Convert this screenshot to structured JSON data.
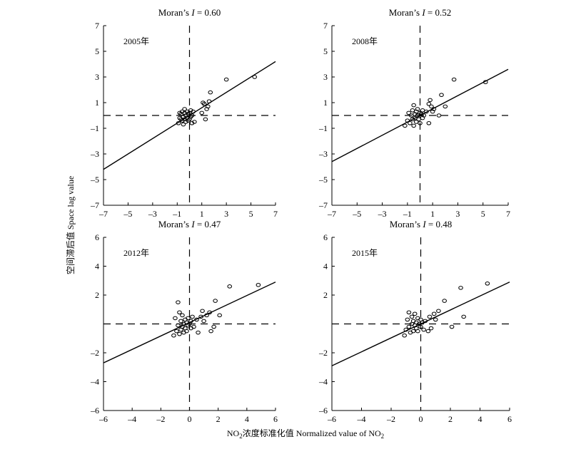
{
  "figure": {
    "ylabel": "空间滞后值  Space lag value",
    "xlabel_prefix": "NO",
    "xlabel_sub": "2",
    "xlabel_mid": "浓度标准化值 Normalized value of NO",
    "xlabel_sub2": "2"
  },
  "chart_data": [
    {
      "type": "scatter",
      "title_prefix": "Moran’s ",
      "title_var": "I",
      "title_value": " = 0.60",
      "year": "2005年",
      "xlim": [
        -7,
        7
      ],
      "ylim": [
        -7,
        7
      ],
      "xticks": [
        -7,
        -5,
        -3,
        -1,
        1,
        3,
        5,
        7
      ],
      "yticks": [
        -7,
        -5,
        -3,
        -1,
        1,
        3,
        5,
        7
      ],
      "ytick_labels": [
        "–7",
        "–5",
        "–3",
        "–1",
        "1",
        "3",
        "5",
        "7"
      ],
      "xtick_labels": [
        "–7",
        "–5",
        "–3",
        "–1",
        "1",
        "3",
        "5",
        "7"
      ],
      "vline_x": 0,
      "hline_y": 0,
      "fit_line": [
        [
          -7,
          -4.2
        ],
        [
          7,
          4.2
        ]
      ],
      "points": [
        [
          -0.9,
          -0.6
        ],
        [
          -0.8,
          -0.2
        ],
        [
          -0.7,
          0.1
        ],
        [
          -0.6,
          -0.4
        ],
        [
          -0.6,
          0.3
        ],
        [
          -0.5,
          -0.1
        ],
        [
          -0.5,
          -0.7
        ],
        [
          -0.4,
          0.2
        ],
        [
          -0.4,
          -0.3
        ],
        [
          -0.3,
          0.0
        ],
        [
          -0.3,
          -0.5
        ],
        [
          -0.2,
          0.3
        ],
        [
          -0.2,
          -0.2
        ],
        [
          -0.1,
          0.1
        ],
        [
          -0.1,
          -0.4
        ],
        [
          0.0,
          0.2
        ],
        [
          0.0,
          -0.3
        ],
        [
          0.1,
          0.4
        ],
        [
          0.1,
          -0.1
        ],
        [
          0.2,
          0.0
        ],
        [
          0.2,
          -0.6
        ],
        [
          0.3,
          0.3
        ],
        [
          -0.7,
          -0.3
        ],
        [
          -0.8,
          0.2
        ],
        [
          -0.4,
          0.5
        ],
        [
          0.4,
          -0.5
        ],
        [
          1.0,
          0.2
        ],
        [
          1.1,
          1.0
        ],
        [
          1.2,
          0.9
        ],
        [
          1.3,
          -0.3
        ],
        [
          1.4,
          0.5
        ],
        [
          1.5,
          0.7
        ],
        [
          1.6,
          1.1
        ],
        [
          1.7,
          1.8
        ],
        [
          3.0,
          2.8
        ],
        [
          5.3,
          3.0
        ]
      ]
    },
    {
      "type": "scatter",
      "title_prefix": "Moran’s ",
      "title_var": "I",
      "title_value": " = 0.52",
      "year": "2008年",
      "xlim": [
        -7,
        7
      ],
      "ylim": [
        -7,
        7
      ],
      "xticks": [
        -7,
        -5,
        -3,
        -1,
        1,
        3,
        5,
        7
      ],
      "yticks": [
        -7,
        -5,
        -3,
        -1,
        1,
        3,
        5,
        7
      ],
      "ytick_labels": [
        "–7",
        "–5",
        "–3",
        "–1",
        "1",
        "3",
        "5",
        "7"
      ],
      "xtick_labels": [
        "–7",
        "–5",
        "–3",
        "–1",
        "1",
        "3",
        "5",
        "7"
      ],
      "vline_x": 0,
      "hline_y": 0,
      "fit_line": [
        [
          -7,
          -3.6
        ],
        [
          7,
          3.6
        ]
      ],
      "points": [
        [
          -1.2,
          -0.8
        ],
        [
          -1.0,
          -0.4
        ],
        [
          -0.9,
          0.2
        ],
        [
          -0.8,
          -0.6
        ],
        [
          -0.7,
          0.0
        ],
        [
          -0.6,
          -0.3
        ],
        [
          -0.6,
          0.4
        ],
        [
          -0.5,
          -0.8
        ],
        [
          -0.5,
          0.8
        ],
        [
          -0.4,
          0.1
        ],
        [
          -0.4,
          -0.2
        ],
        [
          -0.3,
          0.3
        ],
        [
          -0.3,
          -0.5
        ],
        [
          -0.2,
          0.0
        ],
        [
          -0.2,
          0.5
        ],
        [
          -0.1,
          -0.3
        ],
        [
          0.0,
          0.2
        ],
        [
          0.0,
          -0.6
        ],
        [
          0.1,
          0.1
        ],
        [
          0.2,
          0.4
        ],
        [
          0.2,
          -0.2
        ],
        [
          0.3,
          0.0
        ],
        [
          0.5,
          0.3
        ],
        [
          0.7,
          0.9
        ],
        [
          0.7,
          -0.6
        ],
        [
          0.8,
          1.2
        ],
        [
          0.9,
          0.7
        ],
        [
          1.0,
          0.3
        ],
        [
          1.1,
          0.5
        ],
        [
          1.5,
          0.0
        ],
        [
          1.7,
          1.6
        ],
        [
          2.0,
          0.7
        ],
        [
          2.7,
          2.8
        ],
        [
          5.2,
          2.6
        ]
      ]
    },
    {
      "type": "scatter",
      "title_prefix": "Moran’s ",
      "title_var": "I",
      "title_value": " = 0.47",
      "year": "2012年",
      "xlim": [
        -6,
        6
      ],
      "ylim": [
        -6,
        6
      ],
      "xticks": [
        -6,
        -4,
        -2,
        0,
        2,
        4,
        6
      ],
      "yticks": [
        -6,
        -4,
        -2,
        2,
        4,
        6
      ],
      "ytick_labels": [
        "–6",
        "–4",
        "–2",
        "2",
        "4",
        "6"
      ],
      "xtick_labels": [
        "–6",
        "–4",
        "–2",
        "0",
        "2",
        "4",
        "6"
      ],
      "vline_x": 0,
      "hline_y": 0,
      "fit_line": [
        [
          -6,
          -2.7
        ],
        [
          6,
          2.9
        ]
      ],
      "points": [
        [
          -1.1,
          -0.8
        ],
        [
          -1.0,
          0.4
        ],
        [
          -0.9,
          -0.5
        ],
        [
          -0.8,
          1.5
        ],
        [
          -0.8,
          -0.1
        ],
        [
          -0.7,
          0.8
        ],
        [
          -0.7,
          -0.7
        ],
        [
          -0.6,
          0.2
        ],
        [
          -0.6,
          -0.4
        ],
        [
          -0.5,
          0.6
        ],
        [
          -0.5,
          -0.2
        ],
        [
          -0.4,
          0.0
        ],
        [
          -0.4,
          -0.6
        ],
        [
          -0.3,
          0.3
        ],
        [
          -0.3,
          -0.3
        ],
        [
          -0.2,
          0.1
        ],
        [
          -0.2,
          -0.5
        ],
        [
          -0.1,
          0.4
        ],
        [
          -0.1,
          -0.1
        ],
        [
          0.0,
          0.0
        ],
        [
          0.1,
          0.2
        ],
        [
          0.1,
          -0.3
        ],
        [
          0.2,
          0.5
        ],
        [
          0.3,
          -0.2
        ],
        [
          0.5,
          0.3
        ],
        [
          0.6,
          -0.6
        ],
        [
          0.8,
          0.5
        ],
        [
          0.9,
          0.9
        ],
        [
          1.0,
          0.2
        ],
        [
          1.2,
          0.6
        ],
        [
          1.4,
          0.8
        ],
        [
          1.5,
          -0.5
        ],
        [
          1.7,
          -0.2
        ],
        [
          1.8,
          1.6
        ],
        [
          2.1,
          0.6
        ],
        [
          2.8,
          2.6
        ],
        [
          4.8,
          2.7
        ]
      ]
    },
    {
      "type": "scatter",
      "title_prefix": "Moran’s ",
      "title_var": "I",
      "title_value": " = 0.48",
      "year": "2015年",
      "xlim": [
        -6,
        6
      ],
      "ylim": [
        -6,
        6
      ],
      "xticks": [
        -6,
        -4,
        -2,
        0,
        2,
        4,
        6
      ],
      "yticks": [
        -6,
        -4,
        -2,
        2,
        4,
        6
      ],
      "ytick_labels": [
        "–6",
        "–4",
        "–2",
        "2",
        "4",
        "6"
      ],
      "xtick_labels": [
        "–6",
        "–4",
        "–2",
        "0",
        "2",
        "4",
        "6"
      ],
      "vline_x": 0,
      "hline_y": 0,
      "fit_line": [
        [
          -6,
          -2.9
        ],
        [
          6,
          2.9
        ]
      ],
      "points": [
        [
          -1.1,
          -0.8
        ],
        [
          -1.0,
          -0.4
        ],
        [
          -0.9,
          0.3
        ],
        [
          -0.8,
          -0.2
        ],
        [
          -0.8,
          0.8
        ],
        [
          -0.7,
          -0.6
        ],
        [
          -0.6,
          0.5
        ],
        [
          -0.6,
          0.0
        ],
        [
          -0.5,
          -0.5
        ],
        [
          -0.5,
          0.2
        ],
        [
          -0.4,
          -0.1
        ],
        [
          -0.4,
          0.7
        ],
        [
          -0.3,
          -0.3
        ],
        [
          -0.3,
          0.1
        ],
        [
          -0.2,
          0.4
        ],
        [
          -0.2,
          -0.5
        ],
        [
          -0.1,
          0.0
        ],
        [
          0.0,
          0.3
        ],
        [
          0.0,
          -0.2
        ],
        [
          0.1,
          0.1
        ],
        [
          0.2,
          -0.4
        ],
        [
          0.3,
          0.2
        ],
        [
          0.5,
          -0.5
        ],
        [
          0.6,
          0.5
        ],
        [
          0.7,
          -0.3
        ],
        [
          0.9,
          0.7
        ],
        [
          1.0,
          0.3
        ],
        [
          1.2,
          0.9
        ],
        [
          1.6,
          1.6
        ],
        [
          2.1,
          -0.2
        ],
        [
          2.7,
          2.5
        ],
        [
          2.9,
          0.5
        ],
        [
          4.5,
          2.8
        ]
      ]
    }
  ]
}
